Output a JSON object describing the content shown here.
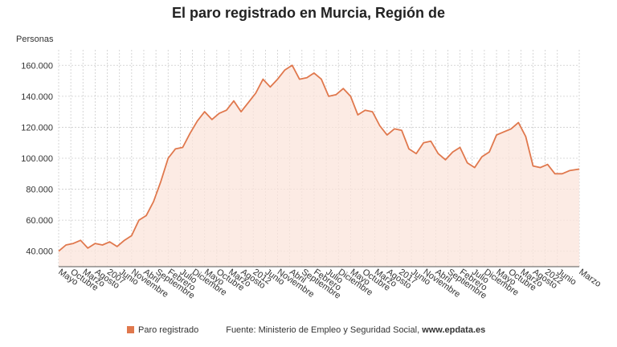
{
  "title": "El paro registrado en Murcia, Región de",
  "y_axis_label": "Personas",
  "footer": {
    "legend_label": "Paro registrado",
    "source_prefix": "Fuente: Ministerio de Empleo y Seguridad Social, ",
    "source_site": "www.epdata.es"
  },
  "colors": {
    "line": "#e0784d",
    "fill": "#fbe4db",
    "grid": "#cccccc"
  },
  "chart_data": {
    "type": "area",
    "title": "El paro registrado en Murcia, Región de",
    "ylabel": "Personas",
    "xlabel": "",
    "ylim": [
      30000,
      170000
    ],
    "yticks": [
      40000,
      60000,
      80000,
      100000,
      120000,
      140000,
      160000
    ],
    "ytick_labels": [
      "40.000",
      "60.000",
      "80.000",
      "100.000",
      "120.000",
      "140.000",
      "160.000"
    ],
    "grid": true,
    "legend": "bottom",
    "x_range": [
      "2005-05",
      "2023-03"
    ],
    "x_ticks": [
      {
        "date": "2005-05",
        "label": "Mayo"
      },
      {
        "date": "2005-10",
        "label": "Octubre"
      },
      {
        "date": "2006-03",
        "label": "Marzo"
      },
      {
        "date": "2006-08",
        "label": "Agosto"
      },
      {
        "date": "2007-01",
        "label": "2007"
      },
      {
        "date": "2007-06",
        "label": "Junio"
      },
      {
        "date": "2007-11",
        "label": "Noviembre"
      },
      {
        "date": "2008-04",
        "label": "Abril"
      },
      {
        "date": "2008-09",
        "label": "Septiembre"
      },
      {
        "date": "2009-02",
        "label": "Febrero"
      },
      {
        "date": "2009-07",
        "label": "Julio"
      },
      {
        "date": "2009-12",
        "label": "Diciembre"
      },
      {
        "date": "2010-05",
        "label": "Mayo"
      },
      {
        "date": "2010-10",
        "label": "Octubre"
      },
      {
        "date": "2011-03",
        "label": "Marzo"
      },
      {
        "date": "2011-08",
        "label": "Agosto"
      },
      {
        "date": "2012-01",
        "label": "2012"
      },
      {
        "date": "2012-06",
        "label": "Junio"
      },
      {
        "date": "2012-11",
        "label": "Noviembre"
      },
      {
        "date": "2013-04",
        "label": "Abril"
      },
      {
        "date": "2013-09",
        "label": "Septiembre"
      },
      {
        "date": "2014-02",
        "label": "Febrero"
      },
      {
        "date": "2014-07",
        "label": "Julio"
      },
      {
        "date": "2014-12",
        "label": "Diciembre"
      },
      {
        "date": "2015-05",
        "label": "Mayo"
      },
      {
        "date": "2015-10",
        "label": "Octubre"
      },
      {
        "date": "2016-03",
        "label": "Marzo"
      },
      {
        "date": "2016-08",
        "label": "Agosto"
      },
      {
        "date": "2017-01",
        "label": "2017"
      },
      {
        "date": "2017-06",
        "label": "Junio"
      },
      {
        "date": "2017-11",
        "label": "Noviembre"
      },
      {
        "date": "2018-04",
        "label": "Abril"
      },
      {
        "date": "2018-09",
        "label": "Septiembre"
      },
      {
        "date": "2019-02",
        "label": "Febrero"
      },
      {
        "date": "2019-07",
        "label": "Julio"
      },
      {
        "date": "2019-12",
        "label": "Diciembre"
      },
      {
        "date": "2020-05",
        "label": "Mayo"
      },
      {
        "date": "2020-10",
        "label": "Octubre"
      },
      {
        "date": "2021-03",
        "label": "Marzo"
      },
      {
        "date": "2021-08",
        "label": "Agosto"
      },
      {
        "date": "2022-01",
        "label": "2022"
      },
      {
        "date": "2022-06",
        "label": "Junio"
      },
      {
        "date": "2023-03",
        "label": "Marzo"
      }
    ],
    "series": [
      {
        "name": "Paro registrado",
        "points": [
          {
            "x": "2005-05",
            "y": 40000
          },
          {
            "x": "2005-08",
            "y": 44000
          },
          {
            "x": "2005-11",
            "y": 45000
          },
          {
            "x": "2006-02",
            "y": 47000
          },
          {
            "x": "2006-05",
            "y": 42000
          },
          {
            "x": "2006-08",
            "y": 45000
          },
          {
            "x": "2006-11",
            "y": 44000
          },
          {
            "x": "2007-02",
            "y": 46000
          },
          {
            "x": "2007-05",
            "y": 43000
          },
          {
            "x": "2007-08",
            "y": 47000
          },
          {
            "x": "2007-11",
            "y": 50000
          },
          {
            "x": "2008-02",
            "y": 60000
          },
          {
            "x": "2008-05",
            "y": 63000
          },
          {
            "x": "2008-08",
            "y": 72000
          },
          {
            "x": "2008-11",
            "y": 85000
          },
          {
            "x": "2009-02",
            "y": 100000
          },
          {
            "x": "2009-05",
            "y": 106000
          },
          {
            "x": "2009-08",
            "y": 107000
          },
          {
            "x": "2009-11",
            "y": 116000
          },
          {
            "x": "2010-02",
            "y": 124000
          },
          {
            "x": "2010-05",
            "y": 130000
          },
          {
            "x": "2010-08",
            "y": 125000
          },
          {
            "x": "2010-11",
            "y": 129000
          },
          {
            "x": "2011-02",
            "y": 131000
          },
          {
            "x": "2011-05",
            "y": 137000
          },
          {
            "x": "2011-08",
            "y": 130000
          },
          {
            "x": "2011-11",
            "y": 136000
          },
          {
            "x": "2012-02",
            "y": 142000
          },
          {
            "x": "2012-05",
            "y": 151000
          },
          {
            "x": "2012-08",
            "y": 146000
          },
          {
            "x": "2012-11",
            "y": 151000
          },
          {
            "x": "2013-02",
            "y": 157000
          },
          {
            "x": "2013-05",
            "y": 160000
          },
          {
            "x": "2013-08",
            "y": 151000
          },
          {
            "x": "2013-11",
            "y": 152000
          },
          {
            "x": "2014-02",
            "y": 155000
          },
          {
            "x": "2014-05",
            "y": 151000
          },
          {
            "x": "2014-08",
            "y": 140000
          },
          {
            "x": "2014-11",
            "y": 141000
          },
          {
            "x": "2015-02",
            "y": 145000
          },
          {
            "x": "2015-05",
            "y": 140000
          },
          {
            "x": "2015-08",
            "y": 128000
          },
          {
            "x": "2015-11",
            "y": 131000
          },
          {
            "x": "2016-02",
            "y": 130000
          },
          {
            "x": "2016-05",
            "y": 121000
          },
          {
            "x": "2016-08",
            "y": 115000
          },
          {
            "x": "2016-11",
            "y": 119000
          },
          {
            "x": "2017-02",
            "y": 118000
          },
          {
            "x": "2017-05",
            "y": 106000
          },
          {
            "x": "2017-08",
            "y": 103000
          },
          {
            "x": "2017-11",
            "y": 110000
          },
          {
            "x": "2018-02",
            "y": 111000
          },
          {
            "x": "2018-05",
            "y": 103000
          },
          {
            "x": "2018-08",
            "y": 99000
          },
          {
            "x": "2018-11",
            "y": 104000
          },
          {
            "x": "2019-02",
            "y": 107000
          },
          {
            "x": "2019-05",
            "y": 97000
          },
          {
            "x": "2019-08",
            "y": 94000
          },
          {
            "x": "2019-11",
            "y": 101000
          },
          {
            "x": "2020-02",
            "y": 104000
          },
          {
            "x": "2020-05",
            "y": 115000
          },
          {
            "x": "2020-08",
            "y": 117000
          },
          {
            "x": "2020-11",
            "y": 119000
          },
          {
            "x": "2021-02",
            "y": 123000
          },
          {
            "x": "2021-05",
            "y": 114000
          },
          {
            "x": "2021-08",
            "y": 95000
          },
          {
            "x": "2021-11",
            "y": 94000
          },
          {
            "x": "2022-02",
            "y": 96000
          },
          {
            "x": "2022-05",
            "y": 90000
          },
          {
            "x": "2022-08",
            "y": 90000
          },
          {
            "x": "2022-11",
            "y": 92000
          },
          {
            "x": "2023-03",
            "y": 93000
          }
        ]
      }
    ]
  }
}
